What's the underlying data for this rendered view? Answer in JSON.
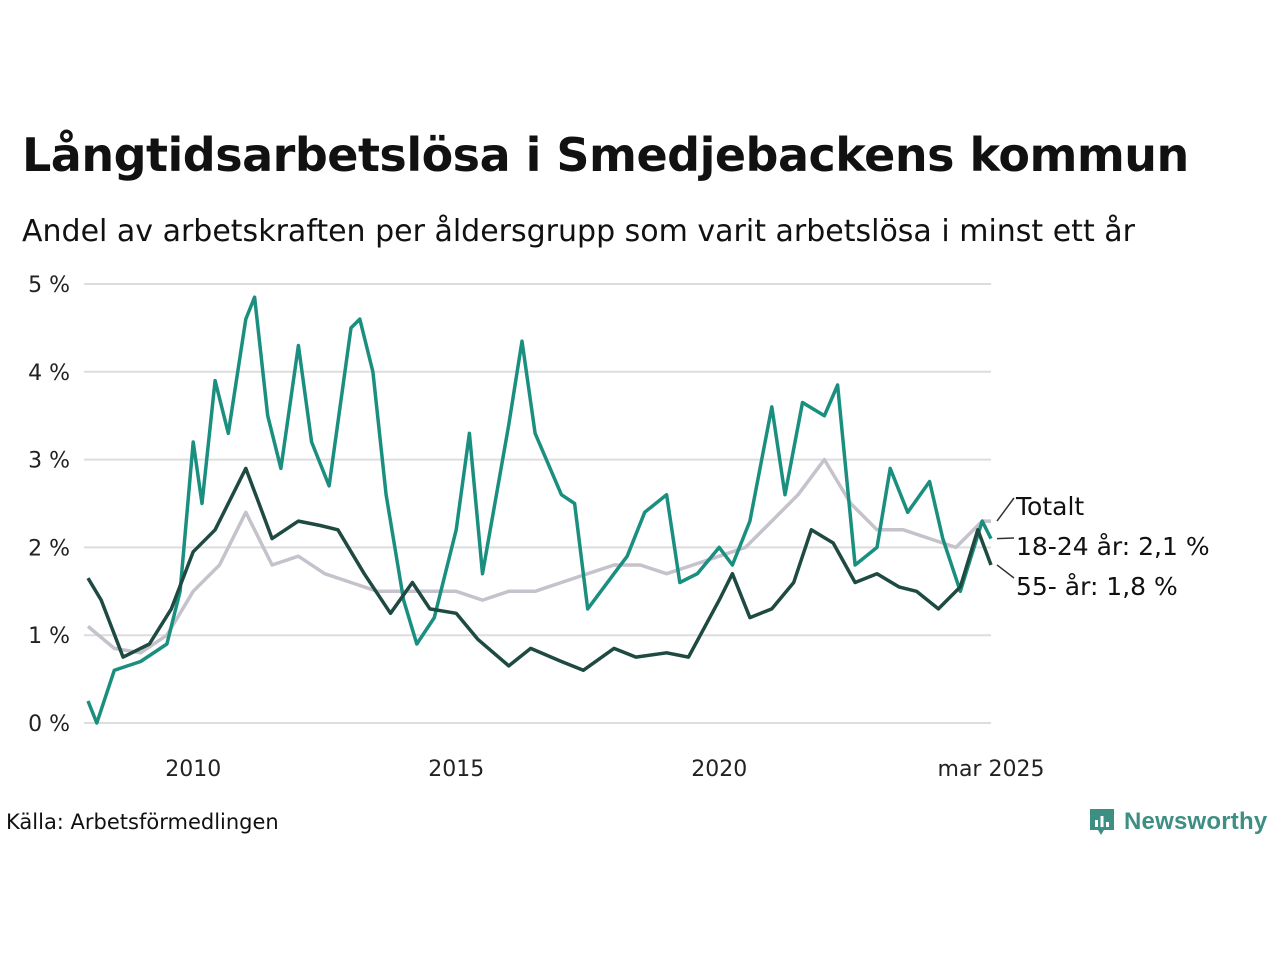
{
  "chart_data": {
    "type": "line",
    "title": "Långtidsarbetslösa i Smedjebackens kommun",
    "subtitle": "Andel av arbetskraften per åldersgrupp som varit arbetslösa i minst ett år",
    "ylim": [
      0,
      5
    ],
    "yticks": [
      "0 %",
      "1 %",
      "2 %",
      "3 %",
      "4 %",
      "5 %"
    ],
    "xlim": [
      "2008-01",
      "2025-03"
    ],
    "xticks": [
      {
        "x": "2010-01",
        "label": "2010"
      },
      {
        "x": "2015-01",
        "label": "2015"
      },
      {
        "x": "2020-01",
        "label": "2020"
      },
      {
        "x": "2025-03",
        "label": "mar 2025"
      }
    ],
    "grid": true,
    "legend": "end-of-line labels",
    "series": [
      {
        "name": "Totalt",
        "color": "#c5c2cc",
        "x": [
          "2008-01",
          "2008-07",
          "2009-01",
          "2009-07",
          "2010-01",
          "2010-07",
          "2011-01",
          "2011-07",
          "2012-01",
          "2012-07",
          "2013-01",
          "2013-07",
          "2014-01",
          "2014-07",
          "2015-01",
          "2015-07",
          "2016-01",
          "2016-07",
          "2017-01",
          "2017-07",
          "2018-01",
          "2018-07",
          "2019-01",
          "2019-07",
          "2020-01",
          "2020-07",
          "2021-01",
          "2021-07",
          "2022-01",
          "2022-07",
          "2023-01",
          "2023-07",
          "2024-01",
          "2024-07",
          "2025-01",
          "2025-03"
        ],
        "values": [
          1.1,
          0.85,
          0.8,
          1.0,
          1.5,
          1.8,
          2.4,
          1.8,
          1.9,
          1.7,
          1.6,
          1.5,
          1.5,
          1.5,
          1.5,
          1.4,
          1.5,
          1.5,
          1.6,
          1.7,
          1.8,
          1.8,
          1.7,
          1.8,
          1.9,
          2.0,
          2.3,
          2.6,
          3.0,
          2.5,
          2.2,
          2.2,
          2.1,
          2.0,
          2.3,
          2.3
        ]
      },
      {
        "name": "18-24 år",
        "label": "18-24 år: 2,1 %",
        "color": "#1a8f7f",
        "x": [
          "2008-01",
          "2008-03",
          "2008-07",
          "2009-01",
          "2009-07",
          "2009-10",
          "2010-01",
          "2010-03",
          "2010-06",
          "2010-09",
          "2011-01",
          "2011-03",
          "2011-06",
          "2011-09",
          "2012-01",
          "2012-04",
          "2012-08",
          "2013-01",
          "2013-03",
          "2013-06",
          "2013-09",
          "2014-01",
          "2014-04",
          "2014-08",
          "2015-01",
          "2015-04",
          "2015-07",
          "2016-01",
          "2016-04",
          "2016-07",
          "2017-01",
          "2017-04",
          "2017-07",
          "2018-01",
          "2018-04",
          "2018-08",
          "2019-01",
          "2019-04",
          "2019-08",
          "2020-01",
          "2020-04",
          "2020-08",
          "2021-01",
          "2021-04",
          "2021-08",
          "2022-01",
          "2022-04",
          "2022-08",
          "2023-01",
          "2023-04",
          "2023-08",
          "2024-01",
          "2024-04",
          "2024-08",
          "2025-01",
          "2025-03"
        ],
        "values": [
          0.25,
          0.0,
          0.6,
          0.7,
          0.9,
          1.5,
          3.2,
          2.5,
          3.9,
          3.3,
          4.6,
          4.85,
          3.5,
          2.9,
          4.3,
          3.2,
          2.7,
          4.5,
          4.6,
          4.0,
          2.6,
          1.4,
          0.9,
          1.2,
          2.2,
          3.3,
          1.7,
          3.4,
          4.35,
          3.3,
          2.6,
          2.5,
          1.3,
          1.7,
          1.9,
          2.4,
          2.6,
          1.6,
          1.7,
          2.0,
          1.8,
          2.3,
          3.6,
          2.6,
          3.65,
          3.5,
          3.85,
          1.8,
          2.0,
          2.9,
          2.4,
          2.75,
          2.1,
          1.5,
          2.3,
          2.1
        ]
      },
      {
        "name": "55- år",
        "label": "55- år: 1,8 %",
        "color": "#1e4a42",
        "x": [
          "2008-01",
          "2008-04",
          "2008-09",
          "2009-03",
          "2009-08",
          "2010-01",
          "2010-06",
          "2011-01",
          "2011-04",
          "2011-07",
          "2012-01",
          "2012-06",
          "2012-10",
          "2013-04",
          "2013-10",
          "2014-03",
          "2014-07",
          "2015-01",
          "2015-06",
          "2016-01",
          "2016-06",
          "2017-01",
          "2017-06",
          "2018-01",
          "2018-06",
          "2019-01",
          "2019-06",
          "2020-01",
          "2020-04",
          "2020-08",
          "2021-01",
          "2021-06",
          "2021-10",
          "2022-03",
          "2022-08",
          "2023-01",
          "2023-06",
          "2023-10",
          "2024-03",
          "2024-08",
          "2024-12",
          "2025-03"
        ],
        "values": [
          1.65,
          1.4,
          0.75,
          0.9,
          1.3,
          1.95,
          2.2,
          2.9,
          2.5,
          2.1,
          2.3,
          2.25,
          2.2,
          1.7,
          1.25,
          1.6,
          1.3,
          1.25,
          0.95,
          0.65,
          0.85,
          0.7,
          0.6,
          0.85,
          0.75,
          0.8,
          0.75,
          1.4,
          1.7,
          1.2,
          1.3,
          1.6,
          2.2,
          2.05,
          1.6,
          1.7,
          1.55,
          1.5,
          1.3,
          1.55,
          2.2,
          1.8
        ]
      }
    ]
  },
  "source": "Källa: Arbetsförmedlingen",
  "brand": "Newsworthy",
  "colors": {
    "brand": "#3d8f84",
    "grid": "#dddddd"
  }
}
